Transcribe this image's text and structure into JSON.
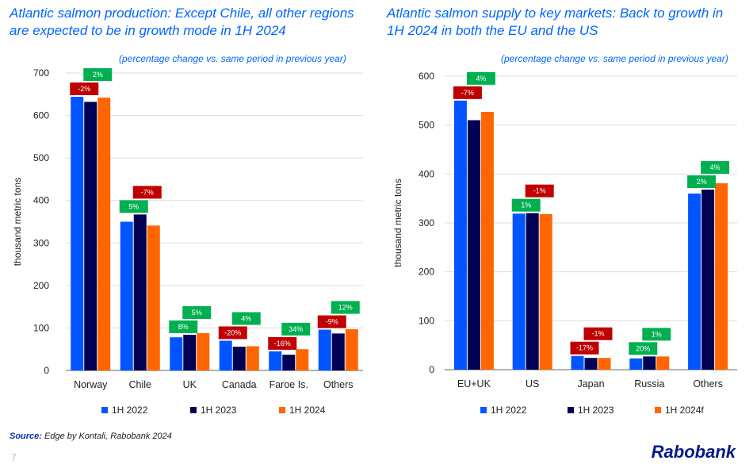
{
  "colors": {
    "s2022": "#0055ff",
    "s2023": "#000055",
    "s2024": "#ff6600",
    "pos": "#00b050",
    "neg": "#c00000"
  },
  "source_label": "Source:",
  "source_text": " Edge by Kontali, Rabobank 2024",
  "page_number": "7",
  "logo": "Rabobank",
  "chart_data": [
    {
      "type": "bar",
      "title": "Atlantic salmon production: Except Chile, all other regions are expected to be in growth mode in 1H 2024",
      "subtitle": "(percentage change vs. same period in previous year)",
      "ylabel": "thousand metric tons",
      "ylim": [
        0,
        700
      ],
      "yticks": [
        0,
        100,
        200,
        300,
        400,
        500,
        600,
        700
      ],
      "grid": true,
      "legend": "bottom",
      "categories": [
        "Norway",
        "Chile",
        "UK",
        "Canada",
        "Faroe Is.",
        "Others"
      ],
      "series": [
        {
          "name": "1H 2022",
          "values": [
            644,
            350,
            78,
            70,
            45,
            96
          ]
        },
        {
          "name": "1H 2023",
          "values": [
            632,
            367,
            84,
            56,
            37,
            87
          ]
        },
        {
          "name": "1H 2024",
          "values": [
            642,
            341,
            88,
            57,
            50,
            97
          ]
        }
      ],
      "change_labels": [
        [
          "-2%",
          "2%"
        ],
        [
          "5%",
          "-7%"
        ],
        [
          "8%",
          "5%"
        ],
        [
          "-20%",
          "4%"
        ],
        [
          "-16%",
          "34%"
        ],
        [
          "-9%",
          "12%"
        ]
      ]
    },
    {
      "type": "bar",
      "title": "Atlantic salmon supply to key markets: Back to growth in 1H 2024 in both the EU and the US",
      "subtitle": "(percentage change vs. same period in previous year)",
      "ylabel": "thousand metric tons",
      "ylim": [
        0,
        600
      ],
      "yticks": [
        0,
        100,
        200,
        300,
        400,
        500,
        600
      ],
      "grid": true,
      "legend": "bottom",
      "categories": [
        "EU+UK",
        "US",
        "Japan",
        "Russia",
        "Others"
      ],
      "series": [
        {
          "name": "1H 2022",
          "values": [
            550,
            319,
            28,
            23,
            360
          ]
        },
        {
          "name": "1H 2023",
          "values": [
            510,
            320,
            24,
            27,
            368
          ]
        },
        {
          "name": "1H 2024f",
          "values": [
            527,
            318,
            24,
            27,
            381
          ]
        }
      ],
      "change_labels": [
        [
          "-7%",
          "4%"
        ],
        [
          "1%",
          "-1%"
        ],
        [
          "-17%",
          "-1%"
        ],
        [
          "20%",
          "1%"
        ],
        [
          "2%",
          "4%"
        ]
      ]
    }
  ]
}
